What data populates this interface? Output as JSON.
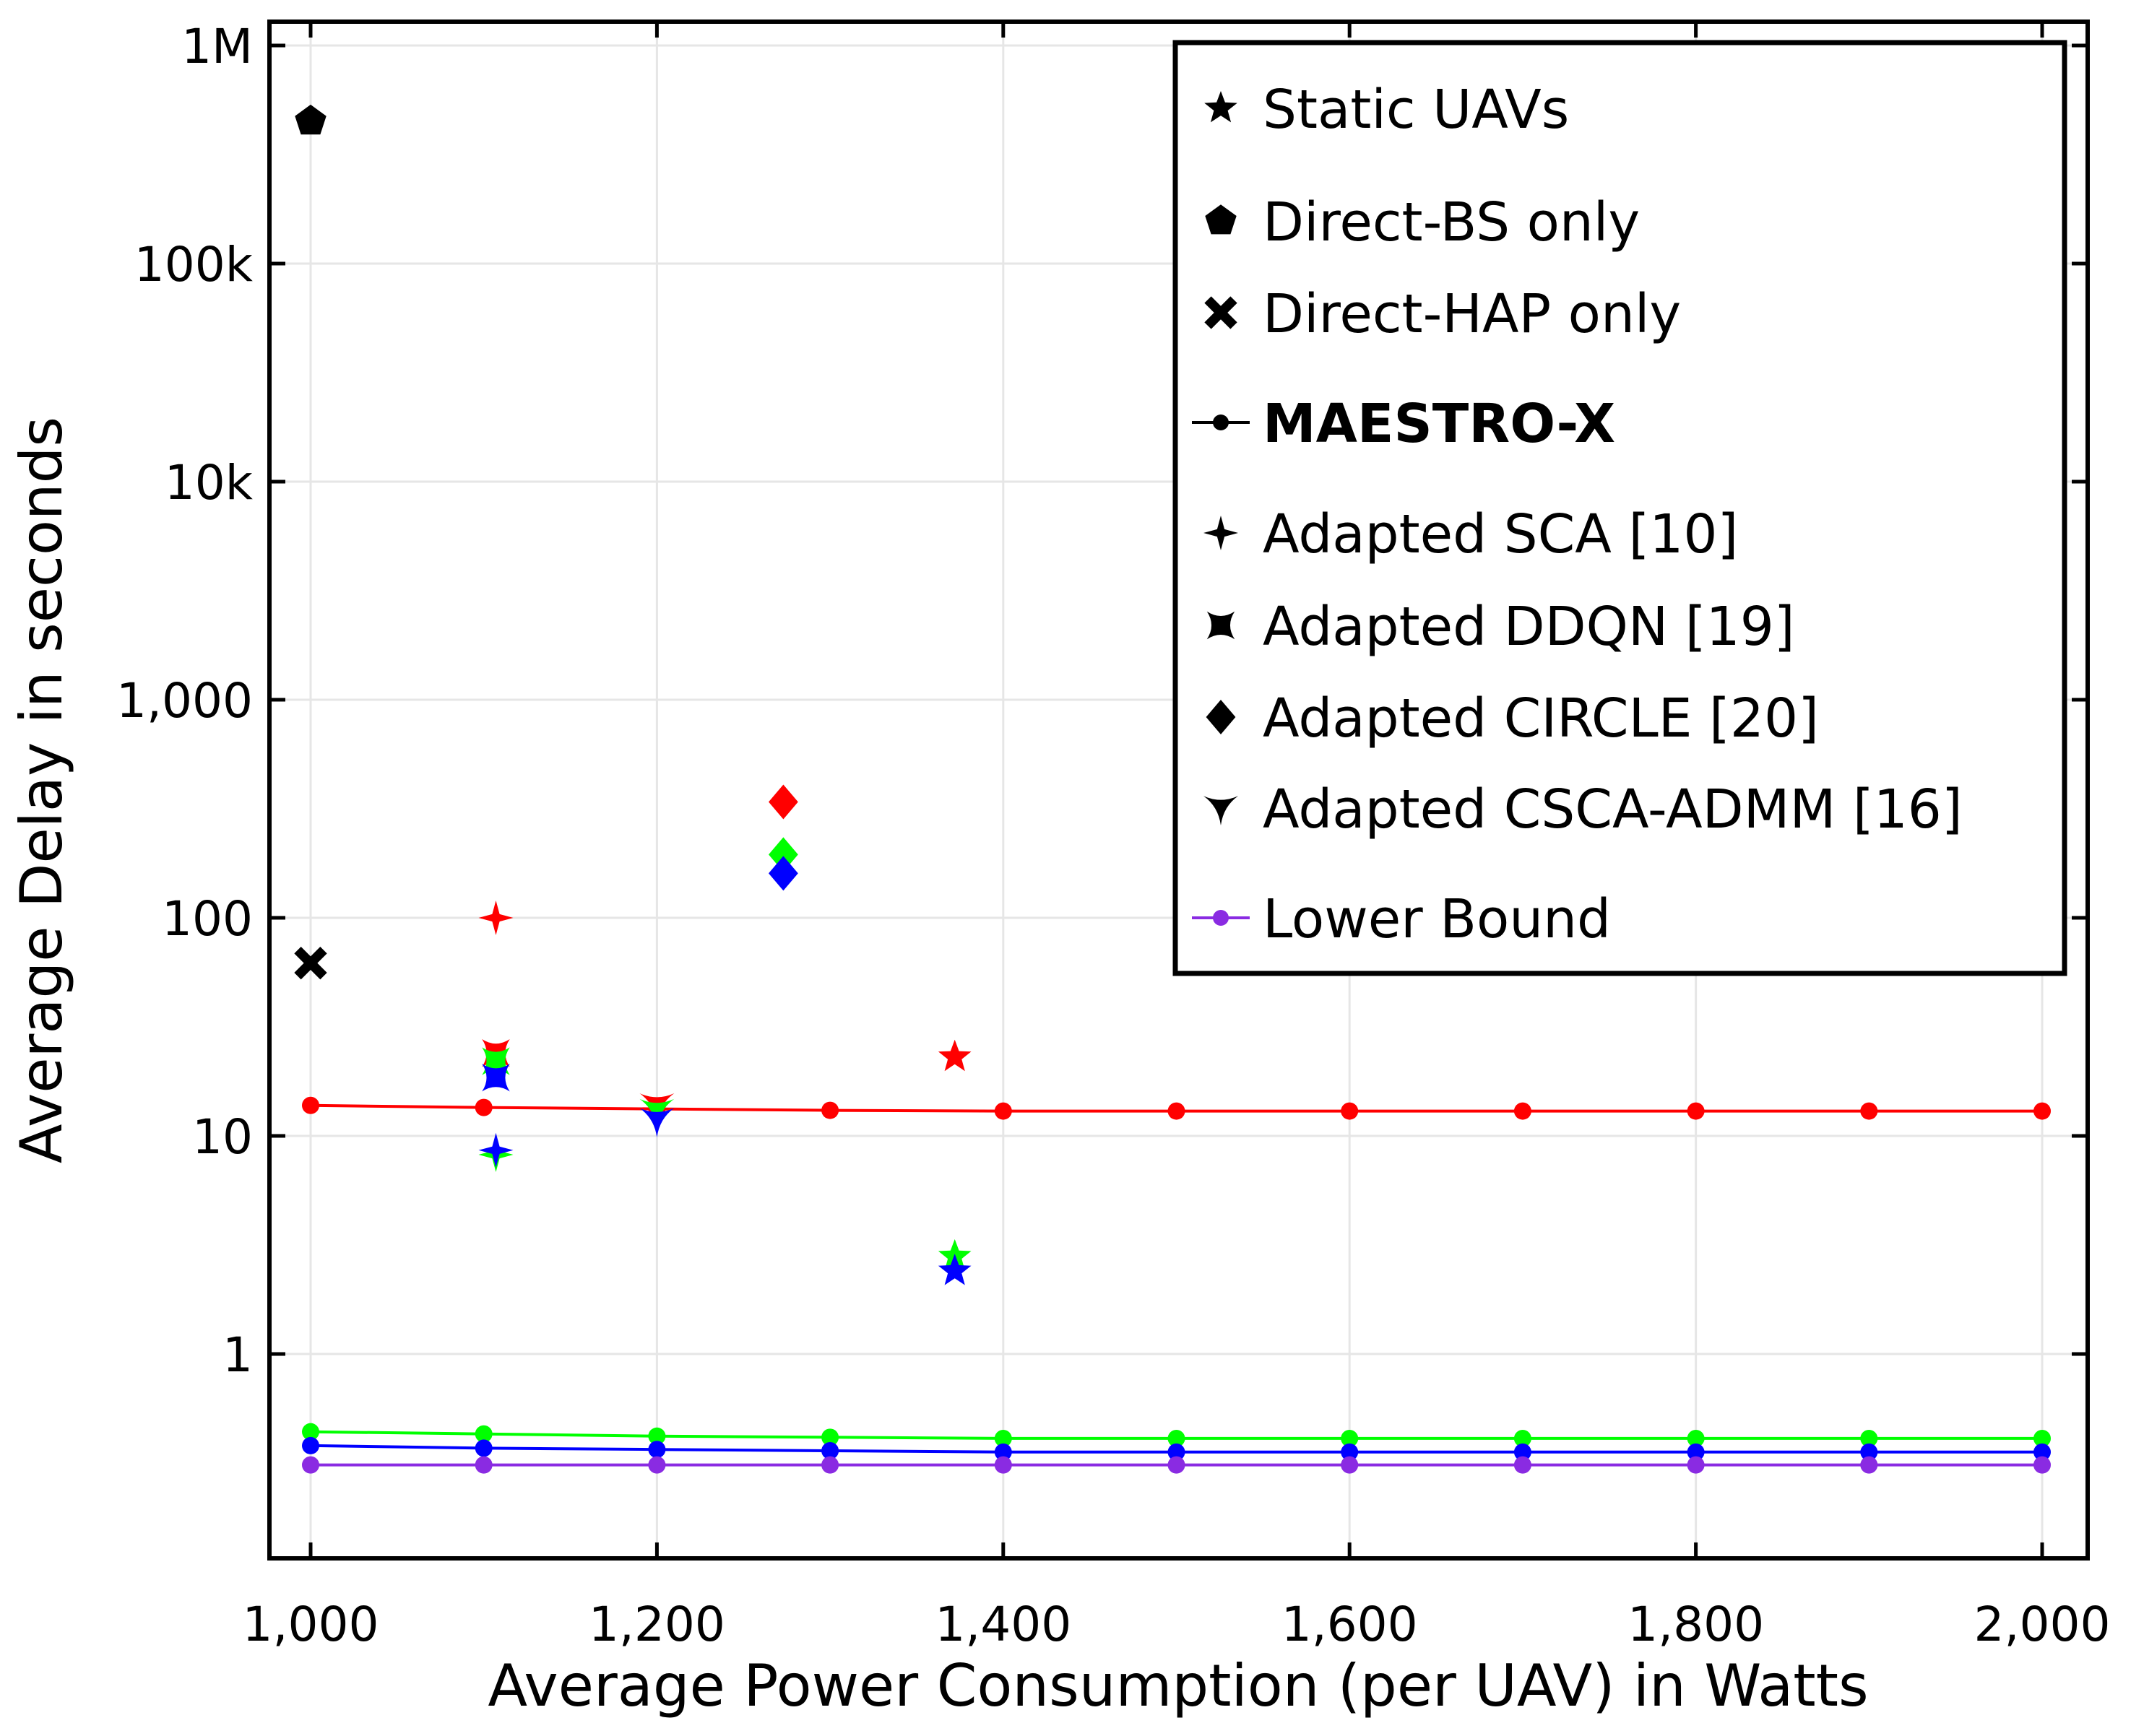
{
  "chart_data": {
    "type": "scatter",
    "title": "",
    "xlabel": "Average Power Consumption (per UAV) in Watts",
    "ylabel": "Average Delay in seconds",
    "xlim": [
      975,
      2025
    ],
    "ylim": [
      0.12,
      1300000
    ],
    "yscale": "log",
    "grid": true,
    "legend_position": "top-right",
    "x_ticks": [
      {
        "value": 1000,
        "label": "1,000"
      },
      {
        "value": 1200,
        "label": "1,200"
      },
      {
        "value": 1400,
        "label": "1,400"
      },
      {
        "value": 1600,
        "label": "1,600"
      },
      {
        "value": 1800,
        "label": "1,800"
      },
      {
        "value": 2000,
        "label": "2,000"
      }
    ],
    "y_ticks": [
      {
        "value": 1,
        "label": "1"
      },
      {
        "value": 10,
        "label": "10"
      },
      {
        "value": 100,
        "label": "100"
      },
      {
        "value": 1000,
        "label": "1,000"
      },
      {
        "value": 10000,
        "label": "10k"
      },
      {
        "value": 100000,
        "label": "100k"
      },
      {
        "value": 1000000,
        "label": "1M"
      }
    ],
    "colors": {
      "red": "#ff0000",
      "green": "#00ff00",
      "blue": "#0000ff",
      "purple": "#8a2be2",
      "black": "#000000"
    },
    "legend": [
      {
        "label": "Static UAVs",
        "marker": "star5",
        "line": false,
        "bold": false,
        "color": "#000000"
      },
      {
        "label": "Direct-BS only",
        "marker": "pentagon",
        "line": false,
        "bold": false,
        "color": "#000000"
      },
      {
        "label": "Direct-HAP only",
        "marker": "cross",
        "line": false,
        "bold": false,
        "color": "#000000"
      },
      {
        "label": "MAESTRO-X",
        "marker": "circle",
        "line": true,
        "bold": true,
        "color": "#000000"
      },
      {
        "label": "Adapted SCA [10]",
        "marker": "star4",
        "line": false,
        "bold": false,
        "color": "#000000"
      },
      {
        "label": "Adapted DDQN [19]",
        "marker": "concave4",
        "line": false,
        "bold": false,
        "color": "#000000"
      },
      {
        "label": "Adapted CIRCLE [20]",
        "marker": "diamond",
        "line": false,
        "bold": false,
        "color": "#000000"
      },
      {
        "label": "Adapted CSCA-ADMM [16]",
        "marker": "tri_down",
        "line": false,
        "bold": false,
        "color": "#000000"
      },
      {
        "label": "Lower Bound",
        "marker": "circle",
        "line": true,
        "bold": false,
        "color": "#8a2be2"
      }
    ],
    "lines": [
      {
        "marker": "circle",
        "color": "#ff0000",
        "x": [
          1000,
          1100,
          1200,
          1300,
          1400,
          1500,
          1600,
          1700,
          1800,
          1900,
          2000
        ],
        "y": [
          13.8,
          13.5,
          13.3,
          13.1,
          13.0,
          13.0,
          13.0,
          13.0,
          13.0,
          13.0,
          13.0
        ]
      },
      {
        "marker": "circle",
        "color": "#00ff00",
        "x": [
          1000,
          1100,
          1200,
          1300,
          1400,
          1500,
          1600,
          1700,
          1800,
          1900,
          2000
        ],
        "y": [
          0.44,
          0.43,
          0.42,
          0.415,
          0.41,
          0.41,
          0.41,
          0.41,
          0.41,
          0.41,
          0.41
        ]
      },
      {
        "marker": "circle",
        "color": "#0000ff",
        "x": [
          1000,
          1100,
          1200,
          1300,
          1400,
          1500,
          1600,
          1700,
          1800,
          1900,
          2000
        ],
        "y": [
          0.38,
          0.37,
          0.365,
          0.36,
          0.355,
          0.355,
          0.355,
          0.355,
          0.355,
          0.355,
          0.355
        ]
      },
      {
        "marker": "circle",
        "color": "#8a2be2",
        "x": [
          1000,
          1100,
          1200,
          1300,
          1400,
          1500,
          1600,
          1700,
          1800,
          1900,
          2000
        ],
        "y": [
          0.31,
          0.31,
          0.31,
          0.31,
          0.31,
          0.31,
          0.31,
          0.31,
          0.31,
          0.31,
          0.31
        ]
      }
    ],
    "points": [
      {
        "marker": "pentagon",
        "color": "#000000",
        "x": 1000,
        "y": 450000
      },
      {
        "marker": "cross",
        "color": "#000000",
        "x": 1000,
        "y": 62
      },
      {
        "marker": "star4",
        "color": "#ff0000",
        "x": 1107,
        "y": 100
      },
      {
        "marker": "concave4",
        "color": "#ff0000",
        "x": 1107,
        "y": 24
      },
      {
        "marker": "concave4",
        "color": "#00ff00",
        "x": 1107,
        "y": 22
      },
      {
        "marker": "concave4",
        "color": "#0000ff",
        "x": 1107,
        "y": 18.5
      },
      {
        "marker": "star4",
        "color": "#00ff00",
        "x": 1107,
        "y": 8.2
      },
      {
        "marker": "star4",
        "color": "#0000ff",
        "x": 1107,
        "y": 8.6
      },
      {
        "marker": "tri_down",
        "color": "#ff0000",
        "x": 1200,
        "y": 13.8
      },
      {
        "marker": "tri_down",
        "color": "#00ff00",
        "x": 1200,
        "y": 13.0
      },
      {
        "marker": "tri_down",
        "color": "#0000ff",
        "x": 1200,
        "y": 11.8
      },
      {
        "marker": "diamond",
        "color": "#ff0000",
        "x": 1273,
        "y": 340
      },
      {
        "marker": "diamond",
        "color": "#00ff00",
        "x": 1273,
        "y": 195
      },
      {
        "marker": "diamond",
        "color": "#0000ff",
        "x": 1273,
        "y": 160
      },
      {
        "marker": "star5",
        "color": "#ff0000",
        "x": 1372,
        "y": 23
      },
      {
        "marker": "star5",
        "color": "#00ff00",
        "x": 1372,
        "y": 2.8
      },
      {
        "marker": "star5",
        "color": "#0000ff",
        "x": 1372,
        "y": 2.4
      }
    ]
  }
}
